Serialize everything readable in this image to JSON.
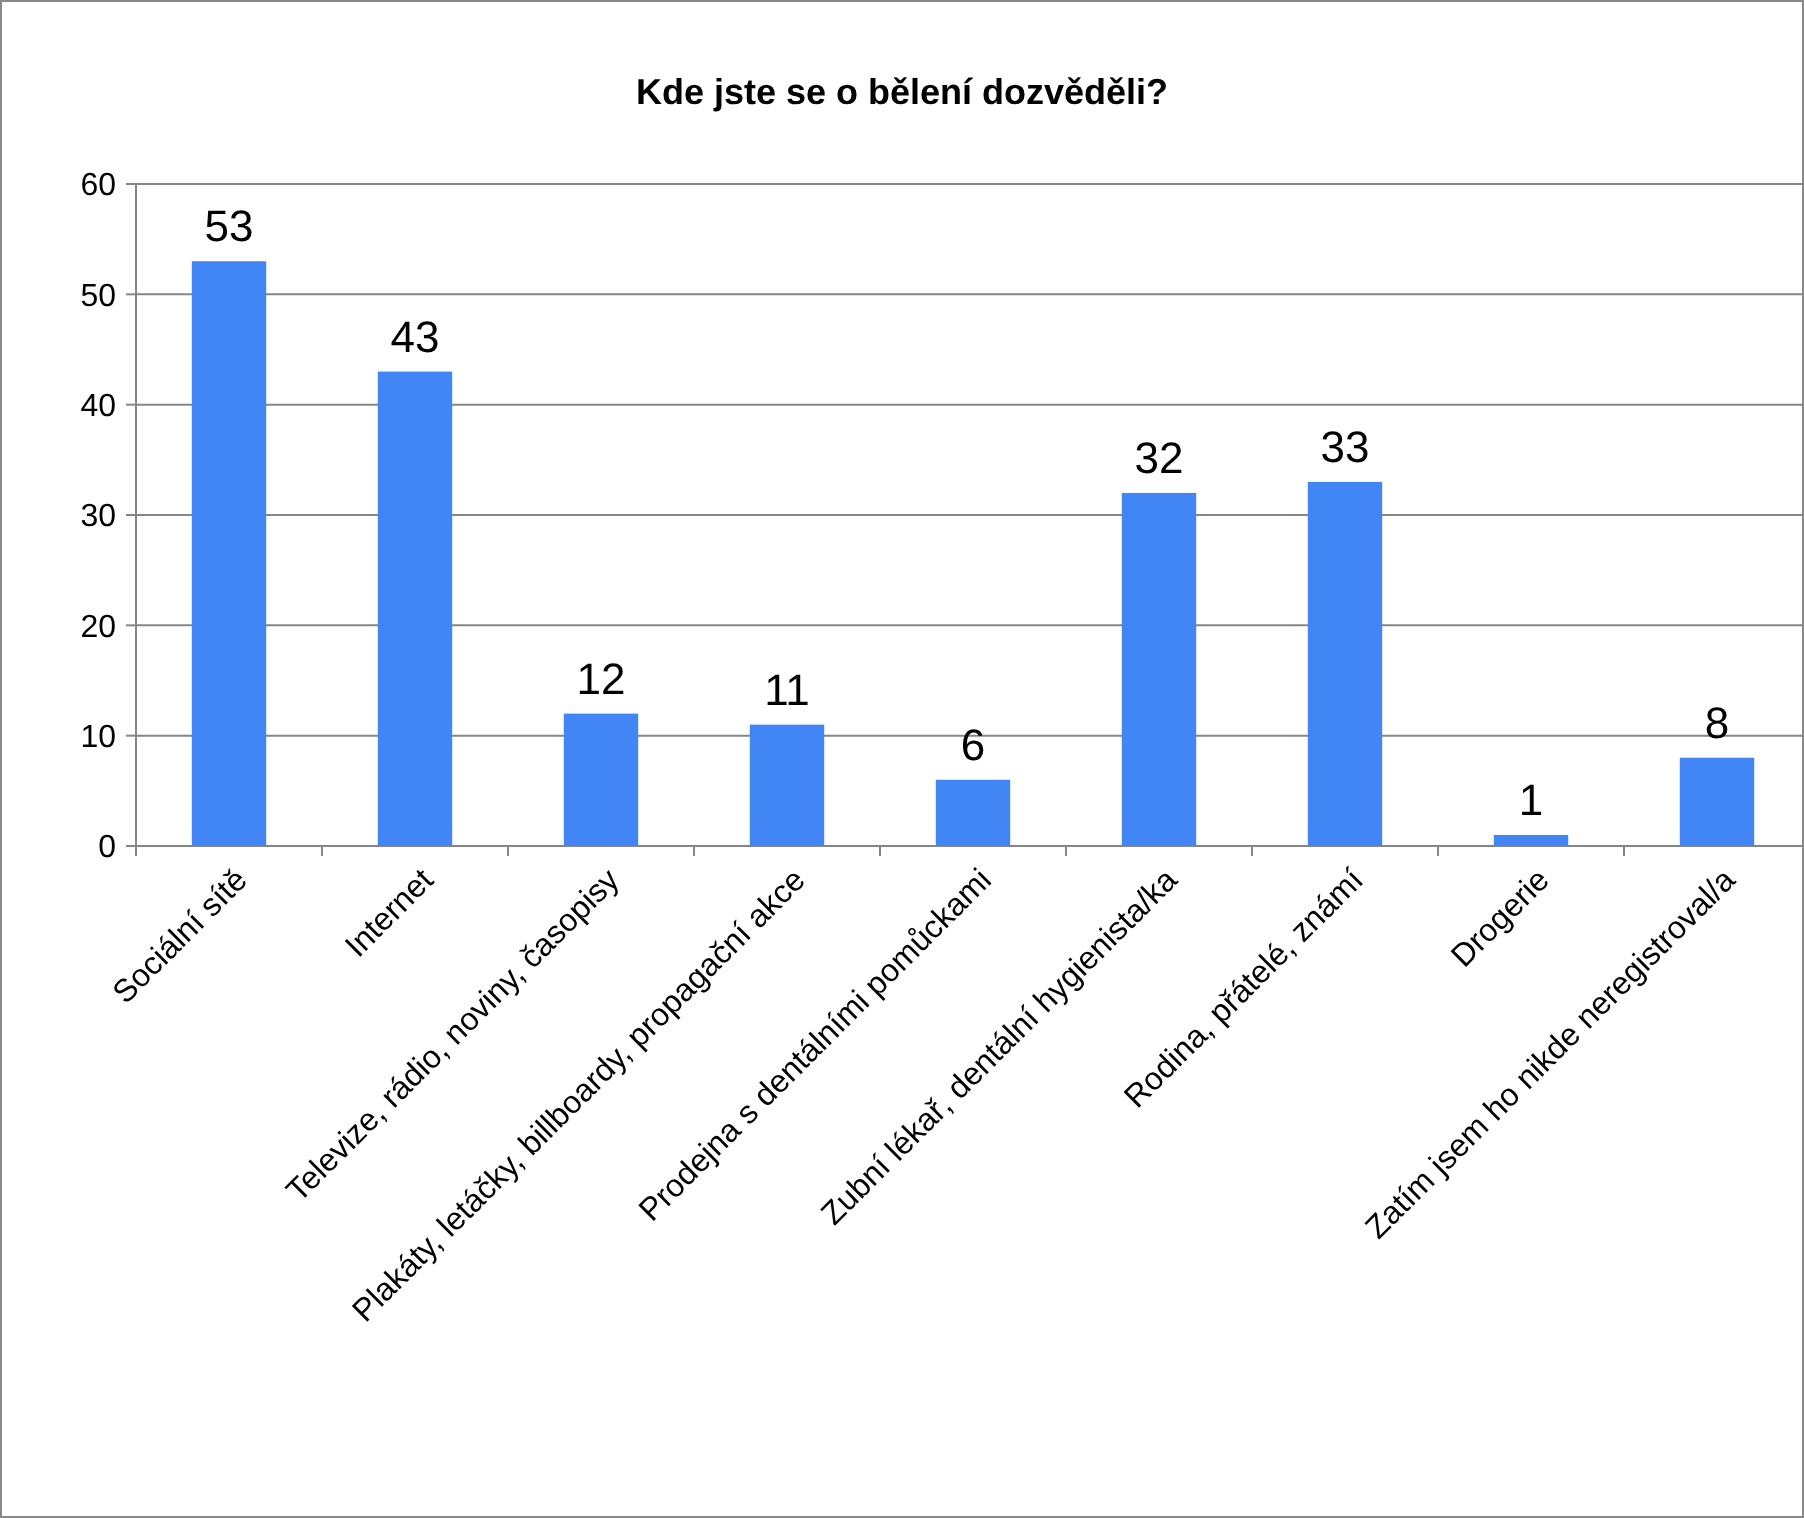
{
  "chart_data": {
    "type": "bar",
    "title": "Kde jste se o bělení dozvěděli?",
    "categories": [
      "Sociální sítě",
      "Internet",
      "Televize, rádio, noviny, časopisy",
      "Plakáty, letáčky, billboardy, propagační akce",
      "Prodejna s dentálními pomůckami",
      "Zubní lékař, dentální hygienista/ka",
      "Rodina, přátelé, známí",
      "Drogerie",
      "Zatím jsem ho nikde neregistroval/a"
    ],
    "values": [
      53,
      43,
      12,
      11,
      6,
      32,
      33,
      1,
      8
    ],
    "color": "#4285f4",
    "ylim": [
      0,
      60
    ],
    "yticks": [
      0,
      10,
      20,
      30,
      40,
      50,
      60
    ],
    "grid": "y",
    "data_labels": true
  }
}
